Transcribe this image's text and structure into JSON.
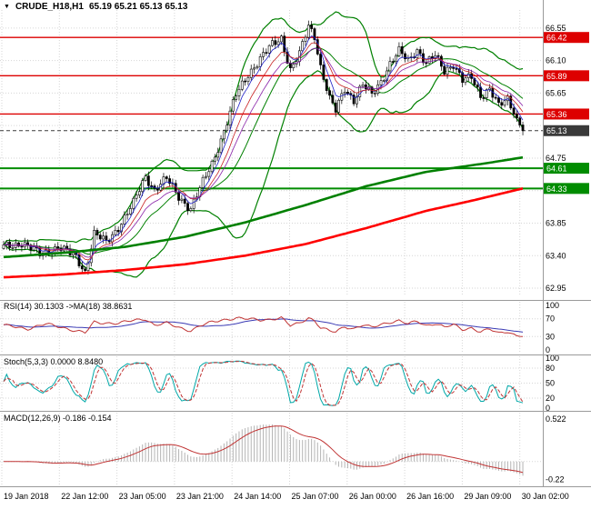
{
  "window": {
    "menu_arrow": "▼",
    "symbol": "CRUDE_H18,H1",
    "quote": "65.19 65.21 65.13 65.13"
  },
  "colors": {
    "background": "#FFFFFF",
    "grid": "#D6D6D6",
    "separator": "#9A9A9A",
    "candle": "#000000",
    "bollinger": "#008000",
    "ma_slow_red": "#FF0000",
    "ma_slow_green": "#008000",
    "resistance": "#DD0000",
    "support": "#008C00",
    "current_price": "#3A3A3A"
  },
  "chart_data": [
    {
      "type": "candlestick",
      "name": "main-price-panel",
      "symbol": "CRUDE_H18,H1",
      "period": "H1",
      "quote": {
        "open": "65.19",
        "high": "65.21",
        "low": "65.13",
        "close": "65.13"
      },
      "ylim": [
        62.9,
        66.8
      ],
      "y_grid": {
        "base": 62.95,
        "step": 0.45,
        "count": 9
      },
      "y_ticks": [
        "66.55",
        "66.10",
        "65.65",
        "64.75",
        "63.85",
        "63.40",
        "62.95"
      ],
      "x_ticks": [
        "19 Jan 2018",
        "22 Jan 12:00",
        "23 Jan 05:00",
        "23 Jan 21:00",
        "24 Jan 14:00",
        "25 Jan 07:00",
        "26 Jan 00:00",
        "26 Jan 16:00",
        "29 Jan 09:00",
        "30 Jan 02:00"
      ],
      "levels": [
        {
          "price": 66.42,
          "label": "66.42",
          "kind": "resistance"
        },
        {
          "price": 65.89,
          "label": "65.89",
          "kind": "resistance"
        },
        {
          "price": 65.36,
          "label": "65.36",
          "kind": "resistance"
        },
        {
          "price": 65.13,
          "label": "65.13",
          "kind": "current"
        },
        {
          "price": 64.61,
          "label": "64.61",
          "kind": "support"
        },
        {
          "price": 64.33,
          "label": "64.33",
          "kind": "support"
        }
      ],
      "bars": 173,
      "close_anchors": [
        [
          0,
          63.52
        ],
        [
          6,
          63.58
        ],
        [
          12,
          63.42
        ],
        [
          18,
          63.52
        ],
        [
          24,
          63.38
        ],
        [
          27,
          63.18
        ],
        [
          30,
          63.7
        ],
        [
          34,
          63.58
        ],
        [
          38,
          63.8
        ],
        [
          43,
          64.12
        ],
        [
          47,
          64.5
        ],
        [
          50,
          64.32
        ],
        [
          54,
          64.46
        ],
        [
          58,
          64.22
        ],
        [
          62,
          64.05
        ],
        [
          65,
          64.32
        ],
        [
          69,
          64.68
        ],
        [
          73,
          65.12
        ],
        [
          77,
          65.62
        ],
        [
          81,
          65.92
        ],
        [
          85,
          66.12
        ],
        [
          89,
          66.32
        ],
        [
          92,
          66.42
        ],
        [
          95,
          65.97
        ],
        [
          98,
          66.18
        ],
        [
          101,
          66.58
        ],
        [
          103,
          66.45
        ],
        [
          105,
          66.02
        ],
        [
          108,
          65.56
        ],
        [
          110,
          65.4
        ],
        [
          113,
          65.72
        ],
        [
          116,
          65.56
        ],
        [
          119,
          65.76
        ],
        [
          122,
          65.62
        ],
        [
          125,
          65.82
        ],
        [
          128,
          66.06
        ],
        [
          131,
          66.22
        ],
        [
          134,
          66.1
        ],
        [
          137,
          66.26
        ],
        [
          140,
          66.06
        ],
        [
          143,
          66.16
        ],
        [
          146,
          65.96
        ],
        [
          149,
          66.06
        ],
        [
          152,
          65.82
        ],
        [
          155,
          65.86
        ],
        [
          158,
          65.62
        ],
        [
          161,
          65.72
        ],
        [
          164,
          65.46
        ],
        [
          167,
          65.56
        ],
        [
          170,
          65.3
        ],
        [
          172,
          65.13
        ]
      ],
      "overlays": {
        "bollinger": {
          "period": 20,
          "deviation": 2
        },
        "ma_red_anchors": [
          [
            0,
            63.1
          ],
          [
            20,
            63.14
          ],
          [
            40,
            63.2
          ],
          [
            60,
            63.28
          ],
          [
            80,
            63.4
          ],
          [
            100,
            63.56
          ],
          [
            120,
            63.78
          ],
          [
            140,
            64.02
          ],
          [
            155,
            64.16
          ],
          [
            172,
            64.33
          ]
        ],
        "ma_green_anchors": [
          [
            0,
            63.38
          ],
          [
            20,
            63.44
          ],
          [
            40,
            63.52
          ],
          [
            60,
            63.66
          ],
          [
            80,
            63.86
          ],
          [
            100,
            64.1
          ],
          [
            120,
            64.36
          ],
          [
            140,
            64.56
          ],
          [
            160,
            64.68
          ],
          [
            172,
            64.76
          ]
        ],
        "fast_ma_periods": [
          5,
          10,
          15
        ]
      }
    },
    {
      "type": "line",
      "name": "rsi-panel",
      "label": "RSI(14) 30.1303 ->MA(18) 38.8631",
      "value": "30.1303",
      "ma_value": "38.8631",
      "ma_period": 18,
      "y_ticks": [
        "100",
        "70",
        "30",
        "0"
      ],
      "levels": [
        70,
        30
      ],
      "anchors": [
        [
          0,
          55
        ],
        [
          8,
          48
        ],
        [
          14,
          58
        ],
        [
          20,
          50
        ],
        [
          27,
          38
        ],
        [
          30,
          62
        ],
        [
          38,
          60
        ],
        [
          43,
          66
        ],
        [
          47,
          70
        ],
        [
          50,
          56
        ],
        [
          54,
          60
        ],
        [
          58,
          50
        ],
        [
          62,
          44
        ],
        [
          65,
          54
        ],
        [
          69,
          62
        ],
        [
          73,
          68
        ],
        [
          77,
          72
        ],
        [
          81,
          69
        ],
        [
          85,
          67
        ],
        [
          89,
          70
        ],
        [
          92,
          72
        ],
        [
          95,
          54
        ],
        [
          98,
          60
        ],
        [
          101,
          73
        ],
        [
          103,
          66
        ],
        [
          105,
          50
        ],
        [
          108,
          42
        ],
        [
          110,
          40
        ],
        [
          113,
          53
        ],
        [
          116,
          48
        ],
        [
          119,
          56
        ],
        [
          122,
          50
        ],
        [
          125,
          57
        ],
        [
          128,
          63
        ],
        [
          131,
          66
        ],
        [
          134,
          58
        ],
        [
          137,
          64
        ],
        [
          140,
          55
        ],
        [
          143,
          60
        ],
        [
          146,
          51
        ],
        [
          149,
          56
        ],
        [
          152,
          46
        ],
        [
          155,
          50
        ],
        [
          158,
          41
        ],
        [
          161,
          46
        ],
        [
          164,
          37
        ],
        [
          167,
          42
        ],
        [
          170,
          32
        ],
        [
          172,
          30.13
        ]
      ],
      "colors": {
        "line": "#C03434",
        "ma": "#3A3AB4"
      }
    },
    {
      "type": "line",
      "name": "stochastic-panel",
      "label": "Stoch(5,3,3) 0.0000 8.8480",
      "k_value": "0.0000",
      "d_value": "8.8480",
      "params": {
        "k_period": 5,
        "d_period": 3,
        "slowing": 3
      },
      "y_ticks": [
        "100",
        "80",
        "50",
        "20",
        "0"
      ],
      "levels": [
        80,
        50,
        20
      ],
      "colors": {
        "k": "#00A8A8",
        "d": "#C03434"
      }
    },
    {
      "type": "macd",
      "name": "macd-panel",
      "label": "MACD(12,26,9) -0.186 -0.154",
      "macd_value": "-0.186",
      "signal_value": "-0.154",
      "params": {
        "fast": 12,
        "slow": 26,
        "signal": 9
      },
      "ylim": [
        -0.26,
        0.58
      ],
      "y_ticks": [
        "0.522",
        "-0.22"
      ],
      "colors": {
        "histogram": "#B4B4B4",
        "signal": "#C03434"
      }
    }
  ]
}
